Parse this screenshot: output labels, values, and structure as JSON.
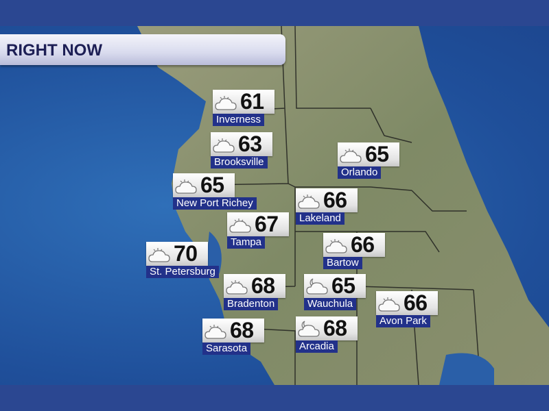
{
  "header": {
    "title": "RIGHT NOW"
  },
  "colors": {
    "band": "#2b4791",
    "label_bg": "#22318a",
    "title_text": "#1d1f55",
    "ocean": "#2f6fb8",
    "land": "#8c9270"
  },
  "cities": [
    {
      "name": "Inverness",
      "temp": "61",
      "icon": "partly-cloudy-icon"
    },
    {
      "name": "Brooksville",
      "temp": "63",
      "icon": "partly-cloudy-icon"
    },
    {
      "name": "Orlando",
      "temp": "65",
      "icon": "partly-cloudy-icon"
    },
    {
      "name": "New Port Richey",
      "temp": "65",
      "icon": "partly-cloudy-icon"
    },
    {
      "name": "Lakeland",
      "temp": "66",
      "icon": "partly-cloudy-icon"
    },
    {
      "name": "Tampa",
      "temp": "67",
      "icon": "partly-cloudy-icon"
    },
    {
      "name": "Bartow",
      "temp": "66",
      "icon": "partly-cloudy-icon"
    },
    {
      "name": "St. Petersburg",
      "temp": "70",
      "icon": "partly-cloudy-icon"
    },
    {
      "name": "Bradenton",
      "temp": "68",
      "icon": "partly-cloudy-icon"
    },
    {
      "name": "Wauchula",
      "temp": "65",
      "icon": "cloudy-night-icon"
    },
    {
      "name": "Avon Park",
      "temp": "66",
      "icon": "partly-cloudy-icon"
    },
    {
      "name": "Sarasota",
      "temp": "68",
      "icon": "partly-cloudy-icon"
    },
    {
      "name": "Arcadia",
      "temp": "68",
      "icon": "cloudy-night-icon"
    }
  ]
}
